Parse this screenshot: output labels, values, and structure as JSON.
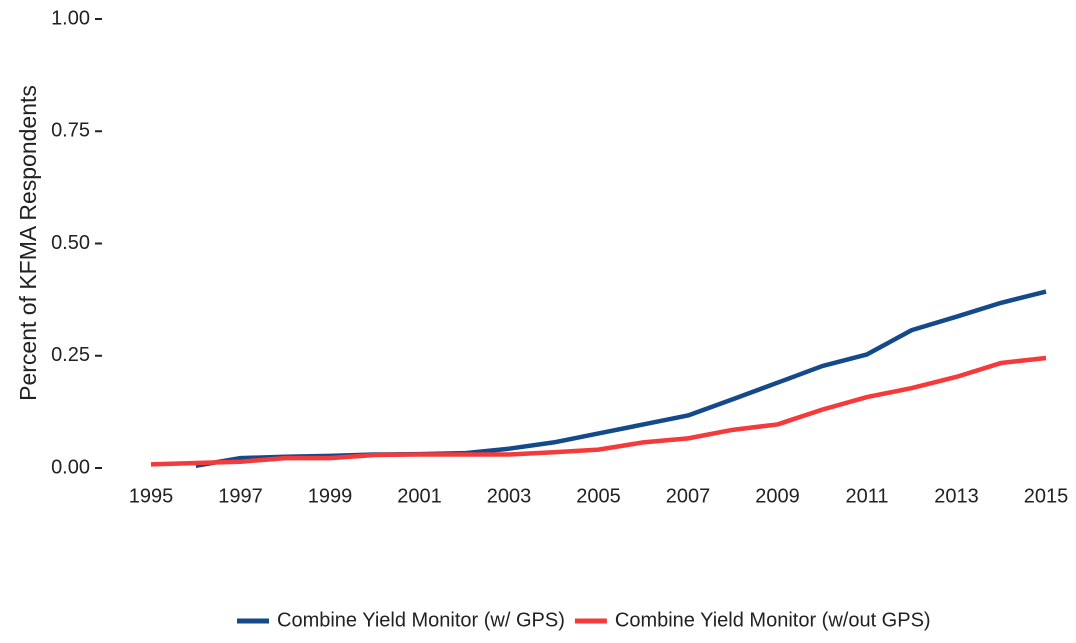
{
  "chart_data": {
    "type": "line",
    "y_label": "Percent of KFMA Respondents",
    "x": [
      1995,
      1996,
      1997,
      1998,
      1999,
      2000,
      2001,
      2002,
      2003,
      2004,
      2005,
      2006,
      2007,
      2008,
      2009,
      2010,
      2011,
      2012,
      2013,
      2014,
      2015
    ],
    "series": [
      {
        "name": "Combine Yield Monitor (w/ GPS)",
        "color": "#154a8a",
        "values": [
          null,
          0.005,
          0.022,
          0.025,
          0.027,
          0.03,
          0.031,
          0.033,
          0.043,
          0.057,
          0.077,
          0.097,
          0.117,
          0.153,
          0.19,
          0.227,
          0.253,
          0.307,
          0.337,
          0.368,
          0.393
        ]
      },
      {
        "name": "Combine Yield Monitor (w/out GPS)",
        "color": "#f43a3a",
        "values": [
          0.008,
          0.011,
          0.014,
          0.022,
          0.022,
          0.029,
          0.03,
          0.03,
          0.03,
          0.035,
          0.041,
          0.057,
          0.066,
          0.085,
          0.097,
          0.13,
          0.158,
          0.178,
          0.203,
          0.234,
          0.245
        ]
      }
    ],
    "xlim": [
      1995,
      2015
    ],
    "xticks": [
      1995,
      1997,
      1999,
      2001,
      2003,
      2005,
      2007,
      2009,
      2011,
      2013,
      2015
    ],
    "ylim": [
      0,
      1
    ],
    "yticks": [
      {
        "value": 0,
        "label": "0.00"
      },
      {
        "value": 0.25,
        "label": "0.25"
      },
      {
        "value": 0.5,
        "label": "0.50"
      },
      {
        "value": 0.75,
        "label": "0.75"
      },
      {
        "value": 1,
        "label": "1.00"
      }
    ],
    "legend": "bottom"
  }
}
